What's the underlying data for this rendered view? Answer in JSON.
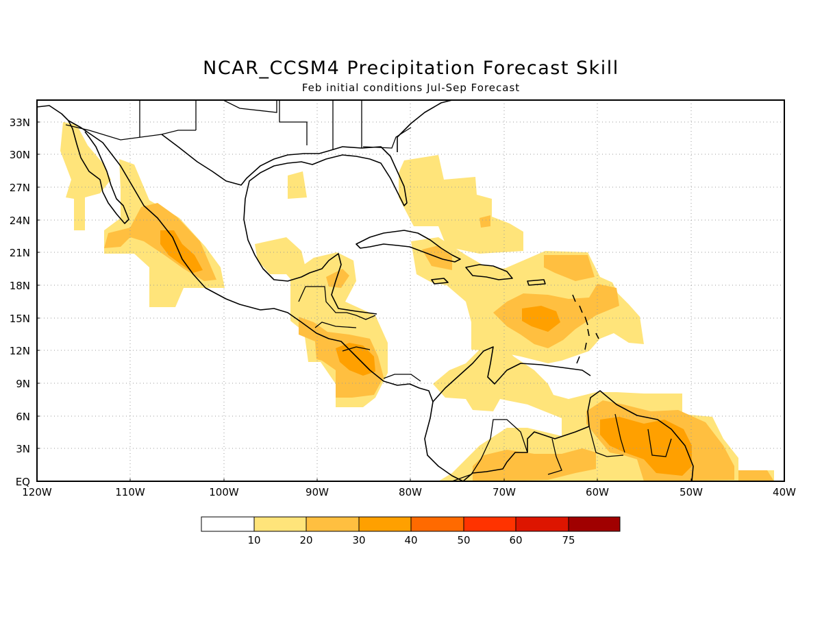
{
  "title": "NCAR_CCSM4 Precipitation Forecast Skill",
  "subtitle": "Feb initial conditions  Jul-Sep Forecast",
  "map": {
    "lon_range": [
      -120,
      -40
    ],
    "lat_range": [
      0,
      35
    ],
    "grid": "dotted",
    "lat_labels": [
      "EQ",
      "3N",
      "6N",
      "9N",
      "12N",
      "15N",
      "18N",
      "21N",
      "24N",
      "27N",
      "30N",
      "33N"
    ],
    "lon_labels": [
      "120W",
      "110W",
      "100W",
      "90W",
      "80W",
      "70W",
      "60W",
      "50W",
      "40W"
    ],
    "skill_regions": [
      {
        "region": "Baja California / Gulf of California",
        "level": 10
      },
      {
        "region": "Western Mexico coast",
        "level": 20
      },
      {
        "region": "Western Mexico core",
        "level": 30
      },
      {
        "region": "Central America Pacific side",
        "level": 20
      },
      {
        "region": "Nicaragua / Costa Rica Pacific",
        "level": 30
      },
      {
        "region": "Florida / Bahamas",
        "level": 10
      },
      {
        "region": "Greater Antilles",
        "level": 10
      },
      {
        "region": "Eastern Caribbean",
        "level": 20
      },
      {
        "region": "Eastern Caribbean core",
        "level": 30
      },
      {
        "region": "Northern South America",
        "level": 10
      },
      {
        "region": "Guianas",
        "level": 20
      },
      {
        "region": "Guianas core",
        "level": 30
      }
    ]
  },
  "colorbar": {
    "labels": [
      "10",
      "20",
      "30",
      "40",
      "50",
      "60",
      "75"
    ],
    "colors": [
      "#ffffff",
      "#ffe47a",
      "#ffbf40",
      "#ffa000",
      "#ff6a00",
      "#ff3300",
      "#dd1500",
      "#a00000"
    ]
  }
}
